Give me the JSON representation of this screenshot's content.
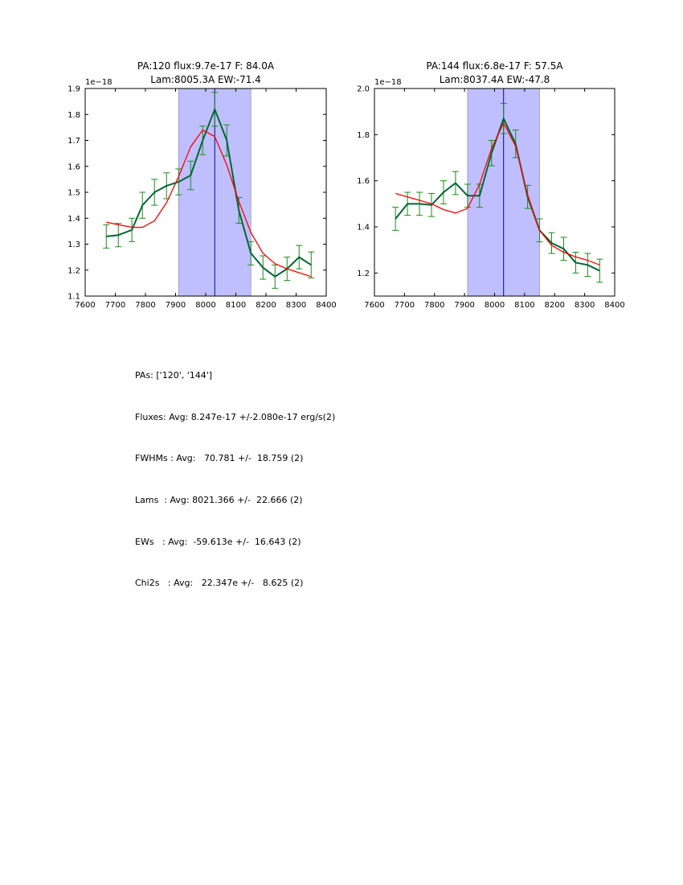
{
  "chart_data": [
    {
      "type": "line",
      "title_line1": "PA:120 flux:9.7e-17 F: 84.0A",
      "title_line2": "Lam:8005.3A EW:-71.4",
      "offset_text": "1e−18",
      "xlim": [
        7600,
        8400
      ],
      "ylim": [
        1.1,
        1.9
      ],
      "xticks": [
        7600,
        7700,
        7800,
        7900,
        8000,
        8100,
        8200,
        8300,
        8400
      ],
      "yticks": [
        1.1,
        1.2,
        1.3,
        1.4,
        1.5,
        1.6,
        1.7,
        1.8,
        1.9
      ],
      "ytick_labels": [
        "1.1",
        "1.2",
        "1.3",
        "1.4",
        "1.5",
        "1.6",
        "1.7",
        "1.8",
        "1.9"
      ],
      "shaded_region": [
        7910,
        8150
      ],
      "vline": 8030,
      "series": [
        {
          "color": "#006633",
          "x": [
            7670,
            7710,
            7755,
            7790,
            7830,
            7870,
            7910,
            7950,
            7990,
            8030,
            8070,
            8110,
            8150,
            8190,
            8230,
            8270,
            8310,
            8350
          ],
          "values": [
            1.33,
            1.335,
            1.355,
            1.45,
            1.5,
            1.525,
            1.54,
            1.565,
            1.7,
            1.82,
            1.7,
            1.43,
            1.265,
            1.21,
            1.175,
            1.205,
            1.25,
            1.22
          ],
          "errors": [
            0.045,
            0.045,
            0.045,
            0.05,
            0.05,
            0.05,
            0.05,
            0.055,
            0.055,
            0.065,
            0.06,
            0.05,
            0.045,
            0.045,
            0.045,
            0.045,
            0.045,
            0.05
          ]
        },
        {
          "color": "#ff0000",
          "x": [
            7670,
            7710,
            7755,
            7790,
            7830,
            7870,
            7910,
            7950,
            7990,
            8030,
            8070,
            8110,
            8150,
            8190,
            8230,
            8270,
            8310,
            8350
          ],
          "values": [
            1.385,
            1.375,
            1.365,
            1.365,
            1.39,
            1.46,
            1.56,
            1.675,
            1.74,
            1.715,
            1.605,
            1.465,
            1.345,
            1.265,
            1.225,
            1.205,
            1.19,
            1.175
          ]
        }
      ]
    },
    {
      "type": "line",
      "title_line1": "PA:144 flux:6.8e-17 F: 57.5A",
      "title_line2": "Lam:8037.4A EW:-47.8",
      "offset_text": "1e−18",
      "xlim": [
        7600,
        8400
      ],
      "ylim": [
        1.1,
        2.0
      ],
      "xticks": [
        7600,
        7700,
        7800,
        7900,
        8000,
        8100,
        8200,
        8300,
        8400
      ],
      "yticks": [
        1.2,
        1.4,
        1.6,
        1.8,
        2.0
      ],
      "ytick_labels": [
        "1.2",
        "1.4",
        "1.6",
        "1.8",
        "2.0"
      ],
      "shaded_region": [
        7910,
        8150
      ],
      "vline": 8030,
      "series": [
        {
          "color": "#006633",
          "x": [
            7670,
            7710,
            7750,
            7790,
            7830,
            7870,
            7910,
            7950,
            7990,
            8030,
            8070,
            8110,
            8150,
            8190,
            8230,
            8270,
            8310,
            8350
          ],
          "values": [
            1.435,
            1.5,
            1.5,
            1.495,
            1.55,
            1.59,
            1.535,
            1.535,
            1.72,
            1.87,
            1.76,
            1.53,
            1.385,
            1.33,
            1.305,
            1.245,
            1.235,
            1.21
          ],
          "errors": [
            0.05,
            0.05,
            0.05,
            0.05,
            0.05,
            0.05,
            0.05,
            0.05,
            0.055,
            0.065,
            0.06,
            0.05,
            0.05,
            0.045,
            0.05,
            0.045,
            0.05,
            0.05
          ]
        },
        {
          "color": "#ff0000",
          "x": [
            7670,
            7710,
            7750,
            7790,
            7830,
            7870,
            7910,
            7950,
            7990,
            8030,
            8070,
            8110,
            8150,
            8190,
            8230,
            8270,
            8310,
            8350
          ],
          "values": [
            1.545,
            1.53,
            1.515,
            1.5,
            1.475,
            1.46,
            1.48,
            1.585,
            1.74,
            1.85,
            1.75,
            1.54,
            1.385,
            1.32,
            1.29,
            1.27,
            1.255,
            1.235
          ]
        }
      ]
    }
  ],
  "stats": [
    "PAs: ['120', '144']",
    "Fluxes: Avg: 8.247e-17 +/-2.080e-17 erg/s(2)",
    "FWHMs : Avg:   70.781 +/-  18.759 (2)",
    "Lams  : Avg: 8021.366 +/-  22.666 (2)",
    "EWs   : Avg:  -59.613e +/-  16.643 (2)",
    "Chi2s   : Avg:   22.347e +/-   8.625 (2)"
  ]
}
